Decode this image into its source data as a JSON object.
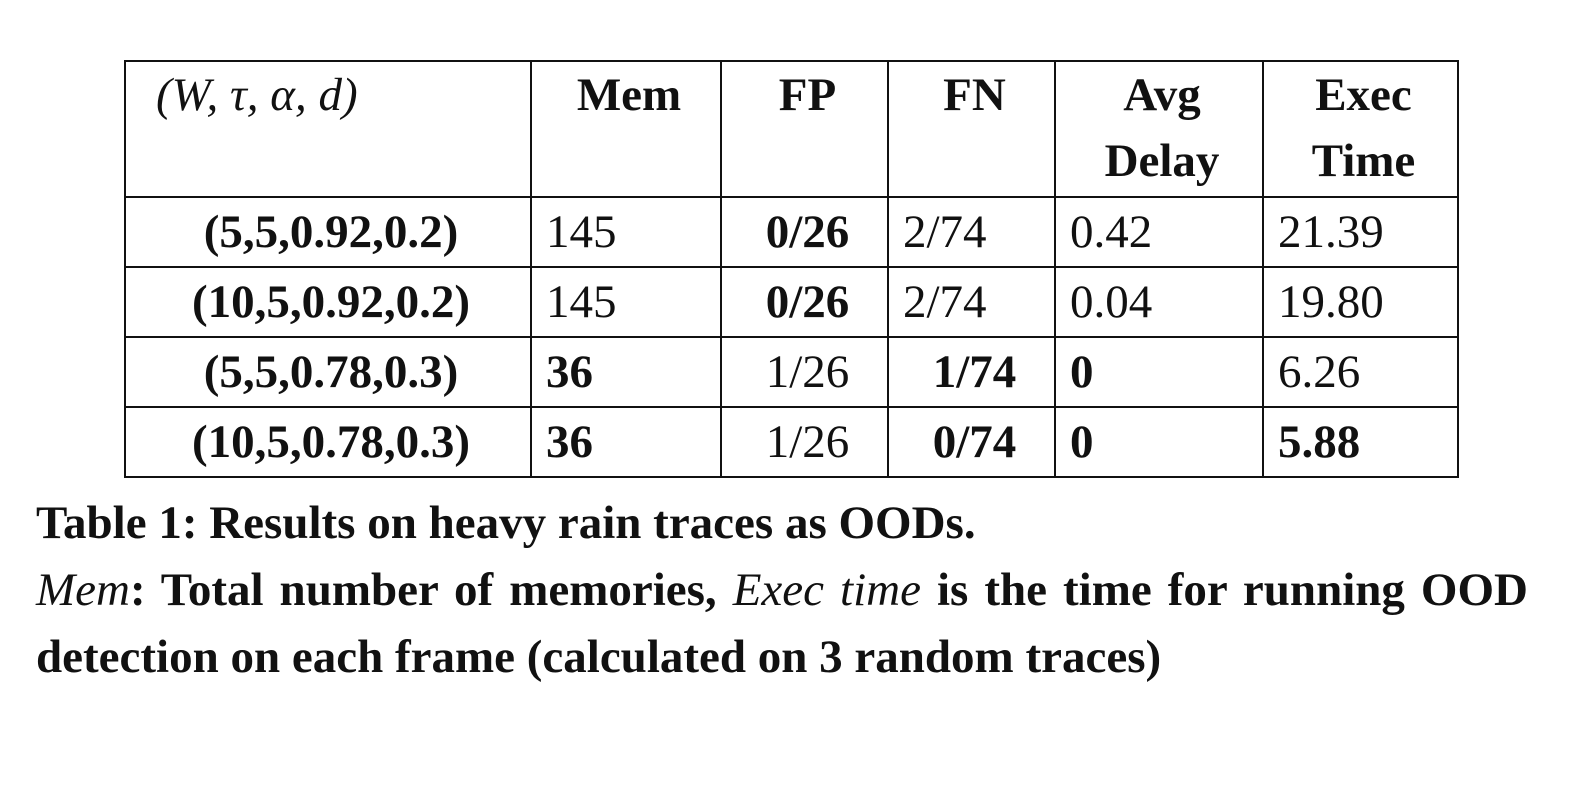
{
  "table": {
    "header": [
      "(W, τ, α, d)",
      "Mem",
      "FP",
      "FN",
      "Avg Delay",
      "Exec Time"
    ],
    "rows": [
      {
        "params": "(5,5,0.92,0.2)",
        "mem": "145",
        "fp": "0/26",
        "fn": "2/74",
        "delay": "0.42",
        "exec": "21.39"
      },
      {
        "params": "(10,5,0.92,0.2)",
        "mem": "145",
        "fp": "0/26",
        "fn": "2/74",
        "delay": "0.04",
        "exec": "19.80"
      },
      {
        "params": "(5,5,0.78,0.3)",
        "mem": "36",
        "fp": "1/26",
        "fn": "1/74",
        "delay": "0",
        "exec": "6.26"
      },
      {
        "params": "(10,5,0.78,0.3)",
        "mem": "36",
        "fp": "1/26",
        "fn": "0/74",
        "delay": "0",
        "exec": "5.88"
      }
    ]
  },
  "caption": {
    "title": "Table 1: Results on heavy rain traces as OODs.",
    "mem_term": "Mem",
    "mem_def": ": Total number of memories, ",
    "exec_term": "Exec time",
    "exec_def": " is the time for running OOD detection on each frame (calculated on 3 random traces)"
  }
}
